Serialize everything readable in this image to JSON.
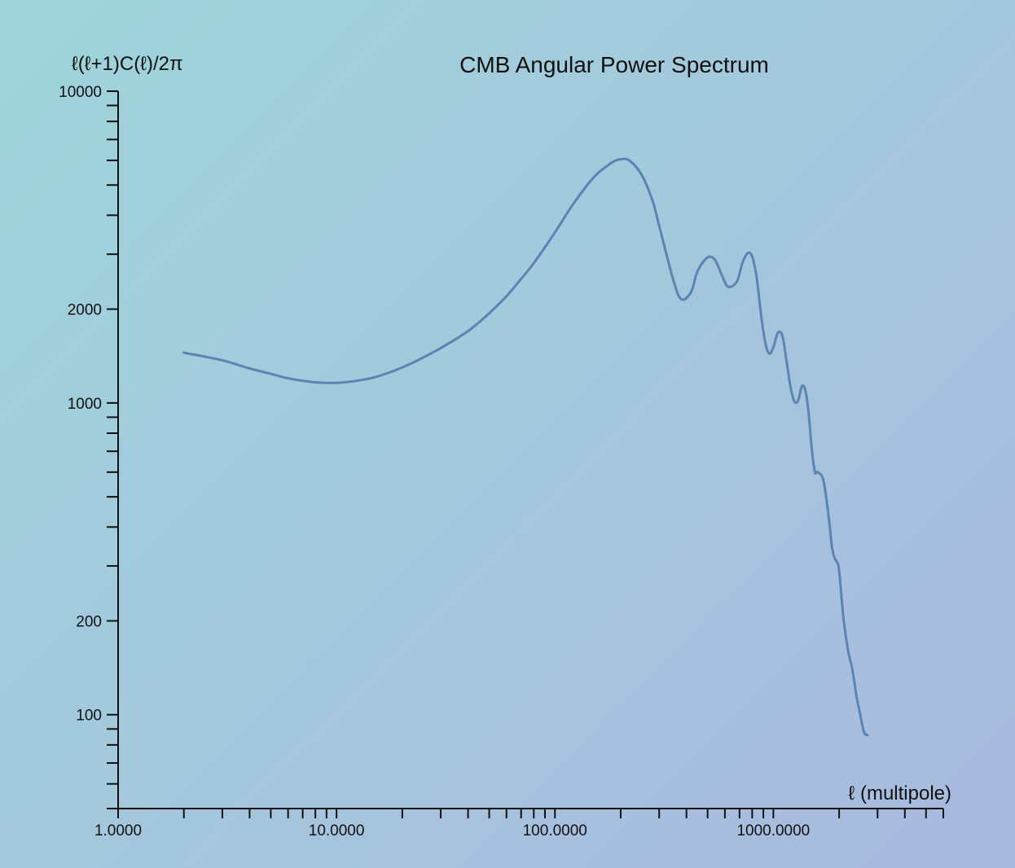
{
  "chart_data": {
    "type": "line",
    "title": "CMB Angular Power Spectrum",
    "xlabel": "ℓ (multipole)",
    "ylabel": "ℓ(ℓ+1)C(ℓ)/2π",
    "x_scale": "log",
    "y_scale": "log",
    "xlim": [
      1,
      6000
    ],
    "ylim": [
      50,
      10000
    ],
    "x_tick_labels": [
      {
        "value": 1,
        "label": "1.0000"
      },
      {
        "value": 10,
        "label": "10.0000"
      },
      {
        "value": 100,
        "label": "100.0000"
      },
      {
        "value": 1000,
        "label": "1000.0000"
      }
    ],
    "y_tick_labels": [
      {
        "value": 100,
        "label": "100"
      },
      {
        "value": 200,
        "label": "200"
      },
      {
        "value": 1000,
        "label": "1000"
      },
      {
        "value": 2000,
        "label": "2000"
      },
      {
        "value": 10000,
        "label": "10000"
      }
    ],
    "line_color": "#5b84b3",
    "series": [
      {
        "x": [
          2,
          3,
          4,
          5,
          6,
          8,
          10,
          12,
          15,
          20,
          25,
          30,
          40,
          50,
          60,
          70,
          80,
          100,
          120,
          150,
          180,
          200,
          220,
          250,
          280,
          300,
          350,
          380,
          420,
          450,
          500,
          540,
          580,
          620,
          680,
          720,
          760,
          800,
          840,
          880,
          920,
          960,
          1000,
          1050,
          1100,
          1150,
          1200,
          1250,
          1300,
          1350,
          1400,
          1450,
          1500,
          1550,
          1600,
          1700,
          1800,
          1850,
          1900,
          1950,
          2000,
          2100,
          2200,
          2300,
          2400,
          2500,
          2600,
          2700
        ],
        "y": [
          1450,
          1370,
          1290,
          1240,
          1200,
          1165,
          1160,
          1175,
          1210,
          1300,
          1400,
          1500,
          1700,
          1940,
          2200,
          2500,
          2810,
          3520,
          4300,
          5280,
          5870,
          6050,
          5980,
          5380,
          4450,
          3700,
          2450,
          2150,
          2270,
          2650,
          2930,
          2880,
          2580,
          2360,
          2450,
          2800,
          3020,
          2950,
          2500,
          1900,
          1550,
          1440,
          1510,
          1680,
          1640,
          1360,
          1120,
          1010,
          1020,
          1130,
          1100,
          930,
          710,
          600,
          600,
          560,
          420,
          350,
          320,
          310,
          290,
          200,
          160,
          140,
          115,
          100,
          88,
          86
        ]
      }
    ]
  }
}
